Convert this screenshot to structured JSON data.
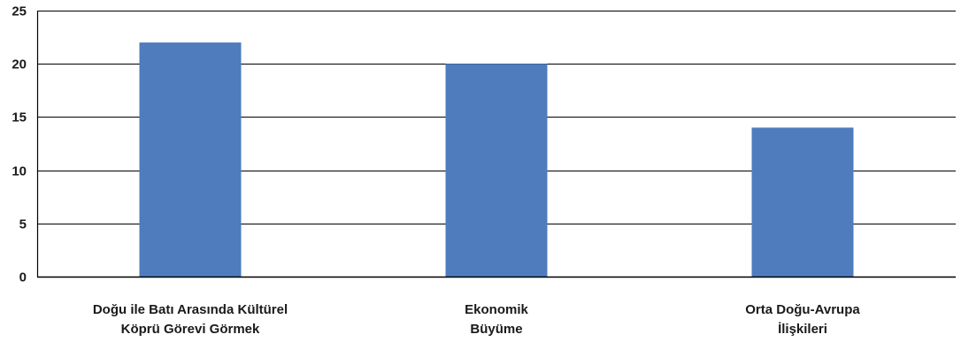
{
  "chart_data": {
    "type": "bar",
    "categories": [
      [
        "Doğu ile Batı Arasında Kültürel",
        "Köprü Görevi Görmek"
      ],
      [
        "Ekonomik",
        "Büyüme"
      ],
      [
        "Orta Doğu-Avrupa",
        "İlişkileri"
      ]
    ],
    "values": [
      22,
      20,
      14
    ],
    "ylim": [
      0,
      25
    ],
    "yticks": [
      0,
      5,
      10,
      15,
      20,
      25
    ],
    "grid": true,
    "bar_color": "#4e7cbc",
    "grid_color": "#000000",
    "title": "",
    "xlabel": "",
    "ylabel": ""
  }
}
